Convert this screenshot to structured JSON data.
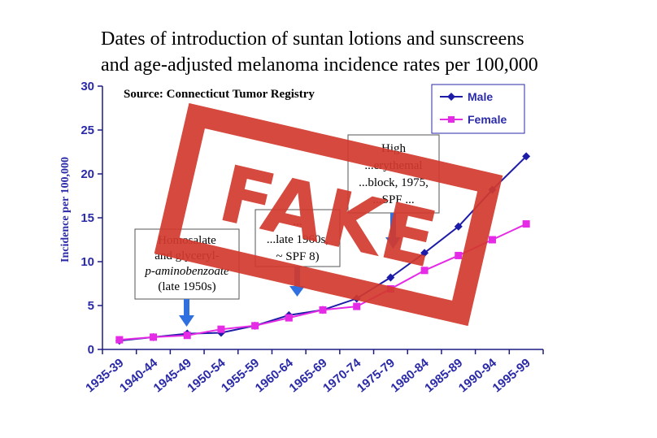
{
  "title_line1": "Dates of introduction of suntan lotions and sunscreens",
  "title_line2": "and age-adjusted melanoma incidence rates per 100,000",
  "source": "Source: Connecticut Tumor Registry",
  "stamp": {
    "text": "FAKE",
    "color": "#d23a2e"
  },
  "annotations": [
    {
      "lines": [
        "Homosalate",
        "and glyceryl-",
        "p-aminobenzoate",
        "(late 1950s)"
      ]
    },
    {
      "lines": [
        "...",
        "...late 1960s,",
        "~ SPF 8)"
      ]
    },
    {
      "lines": [
        "High",
        "...erythemal",
        "...block, 1975,",
        "...SPF ..."
      ]
    }
  ],
  "chart_data": {
    "type": "line",
    "title": "Dates of introduction of suntan lotions and sunscreens and age-adjusted melanoma incidence rates per 100,000",
    "xlabel": "",
    "ylabel": "Incidence per 100,000",
    "ylim": [
      0,
      30
    ],
    "yticks": [
      "0",
      "5",
      "10",
      "15",
      "20",
      "25",
      "30"
    ],
    "categories": [
      "1935-39",
      "1940-44",
      "1945-49",
      "1950-54",
      "1955-59",
      "1960-64",
      "1965-69",
      "1970-74",
      "1975-79",
      "1980-84",
      "1985-89",
      "1990-94",
      "1995-99"
    ],
    "series": [
      {
        "name": "Male",
        "color": "#1c1ca8",
        "marker": "diamond",
        "values": [
          1.0,
          1.4,
          1.8,
          1.9,
          2.7,
          3.9,
          4.5,
          5.8,
          8.2,
          11.0,
          14.0,
          18.2,
          22.0
        ]
      },
      {
        "name": "Female",
        "color": "#e52be5",
        "marker": "square",
        "values": [
          1.1,
          1.4,
          1.6,
          2.3,
          2.7,
          3.6,
          4.5,
          4.9,
          6.9,
          9.0,
          10.7,
          12.5,
          14.3
        ]
      }
    ],
    "legend": "top-right",
    "grid": false
  }
}
